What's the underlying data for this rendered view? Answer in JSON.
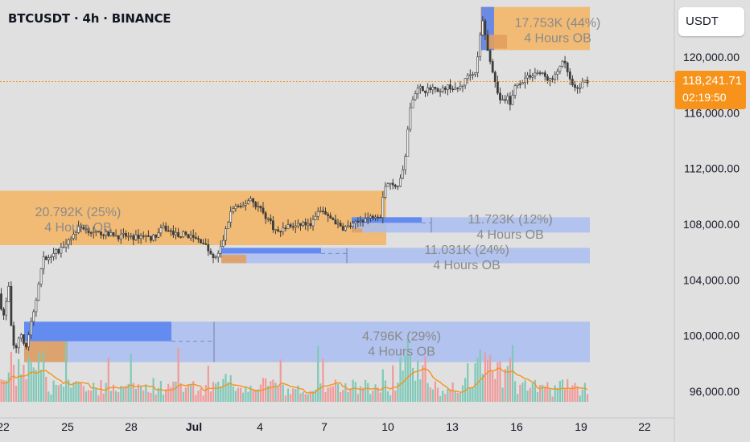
{
  "header": {
    "title": "BTCUSDT · 4h · BINANCE"
  },
  "symbol_button": {
    "label": "USDT"
  },
  "last_price": {
    "value": "118,241.71",
    "countdown": "02:19:50",
    "price": 118241.71,
    "color": "#f7931a"
  },
  "colors": {
    "up": "#4a4a4a",
    "down": "#4a4a4a",
    "volume_up": "#7fc9b8",
    "volume_down": "#f09a9a",
    "ob_bullish": "#f5b462",
    "ob_bearish": "#a8bdf0",
    "ob_accent_blue": "#5b85f0",
    "ob_accent_orange": "#e2a060",
    "ma_line": "#f7931a",
    "last_price_line": "#f7931a"
  },
  "chart_data": {
    "type": "candlestick",
    "title": "BTCUSDT · 4h · BINANCE",
    "x_tick_labels": [
      "22",
      "25",
      "28",
      "Jul",
      "4",
      "7",
      "10",
      "13",
      "16",
      "19",
      "22"
    ],
    "y_tick_labels": [
      "96,000.00",
      "100,000.00",
      "104,000.00",
      "108,000.00",
      "112,000.00",
      "116,000.00",
      "120,000.00"
    ],
    "y_ticks": [
      96000,
      100000,
      104000,
      108000,
      112000,
      116000,
      120000
    ],
    "ylim": [
      95200,
      124800
    ],
    "order_blocks": [
      {
        "label": "17.753K (44%)",
        "sublabel": "4 Hours OB",
        "bottom": 120500,
        "top": 123600,
        "type": "bullish"
      },
      {
        "label": "20.792K (25%)",
        "sublabel": "4 Hours OB",
        "bottom": 106500,
        "top": 110400,
        "type": "bullish"
      },
      {
        "label": "11.723K (12%)",
        "sublabel": "4 Hours OB",
        "bottom": 107400,
        "top": 108500,
        "type": "bearish"
      },
      {
        "label": "11.031K (24%)",
        "sublabel": "4 Hours OB",
        "bottom": 105200,
        "top": 106300,
        "type": "bearish"
      },
      {
        "label": "4.796K (29%)",
        "sublabel": "4 Hours OB",
        "bottom": 98100,
        "top": 101000,
        "type": "bearish"
      }
    ],
    "price_path": [
      [
        0,
        103000
      ],
      [
        8,
        101400
      ],
      [
        14,
        103500
      ],
      [
        18,
        99600
      ],
      [
        22,
        98900
      ],
      [
        26,
        99800
      ],
      [
        30,
        100300
      ],
      [
        34,
        98700
      ],
      [
        40,
        100500
      ],
      [
        46,
        101800
      ],
      [
        52,
        104200
      ],
      [
        58,
        105700
      ],
      [
        64,
        105500
      ],
      [
        70,
        106100
      ],
      [
        76,
        106000
      ],
      [
        82,
        106500
      ],
      [
        88,
        106900
      ],
      [
        94,
        107200
      ],
      [
        100,
        107700
      ],
      [
        106,
        107800
      ],
      [
        112,
        107600
      ],
      [
        118,
        107400
      ],
      [
        124,
        107300
      ],
      [
        130,
        107400
      ],
      [
        138,
        107200
      ],
      [
        144,
        107300
      ],
      [
        150,
        107100
      ],
      [
        158,
        107200
      ],
      [
        166,
        107000
      ],
      [
        174,
        107100
      ],
      [
        182,
        107200
      ],
      [
        190,
        107000
      ],
      [
        198,
        107200
      ],
      [
        206,
        107800
      ],
      [
        212,
        107500
      ],
      [
        218,
        107400
      ],
      [
        224,
        107200
      ],
      [
        232,
        107300
      ],
      [
        240,
        107100
      ],
      [
        248,
        106900
      ],
      [
        256,
        106700
      ],
      [
        262,
        106100
      ],
      [
        268,
        105500
      ],
      [
        274,
        105800
      ],
      [
        278,
        106400
      ],
      [
        282,
        107200
      ],
      [
        286,
        108100
      ],
      [
        290,
        108900
      ],
      [
        296,
        109300
      ],
      [
        302,
        109100
      ],
      [
        308,
        109500
      ],
      [
        314,
        109900
      ],
      [
        320,
        109400
      ],
      [
        326,
        109200
      ],
      [
        332,
        108600
      ],
      [
        338,
        108300
      ],
      [
        344,
        107600
      ],
      [
        350,
        107400
      ],
      [
        356,
        107700
      ],
      [
        362,
        107900
      ],
      [
        368,
        107800
      ],
      [
        374,
        107900
      ],
      [
        380,
        108100
      ],
      [
        386,
        107900
      ],
      [
        392,
        108200
      ],
      [
        398,
        108800
      ],
      [
        404,
        109000
      ],
      [
        410,
        108500
      ],
      [
        416,
        108400
      ],
      [
        422,
        108000
      ],
      [
        428,
        107700
      ],
      [
        434,
        107800
      ],
      [
        440,
        107900
      ],
      [
        446,
        108100
      ],
      [
        452,
        108300
      ],
      [
        458,
        108400
      ],
      [
        464,
        108500
      ],
      [
        470,
        108700
      ],
      [
        476,
        108600
      ],
      [
        480,
        110600
      ],
      [
        486,
        111000
      ],
      [
        492,
        110700
      ],
      [
        498,
        110900
      ],
      [
        504,
        111800
      ],
      [
        508,
        113500
      ],
      [
        512,
        116000
      ],
      [
        516,
        117100
      ],
      [
        520,
        117600
      ],
      [
        526,
        117800
      ],
      [
        532,
        117600
      ],
      [
        538,
        117700
      ],
      [
        544,
        117900
      ],
      [
        550,
        117500
      ],
      [
        556,
        117800
      ],
      [
        562,
        117900
      ],
      [
        568,
        117600
      ],
      [
        574,
        117800
      ],
      [
        580,
        118200
      ],
      [
        586,
        118900
      ],
      [
        592,
        118700
      ],
      [
        596,
        119500
      ],
      [
        600,
        121600
      ],
      [
        604,
        122800
      ],
      [
        608,
        120600
      ],
      [
        612,
        119900
      ],
      [
        616,
        118900
      ],
      [
        620,
        117700
      ],
      [
        624,
        117000
      ],
      [
        628,
        116800
      ],
      [
        634,
        117100
      ],
      [
        638,
        116500
      ],
      [
        642,
        117800
      ],
      [
        646,
        118000
      ],
      [
        652,
        118300
      ],
      [
        658,
        118600
      ],
      [
        664,
        118700
      ],
      [
        670,
        118900
      ],
      [
        676,
        118800
      ],
      [
        682,
        118500
      ],
      [
        688,
        118300
      ],
      [
        694,
        118700
      ],
      [
        700,
        119600
      ],
      [
        706,
        119400
      ],
      [
        712,
        118200
      ],
      [
        718,
        117600
      ],
      [
        724,
        117900
      ],
      [
        730,
        118300
      ],
      [
        734,
        118241.71
      ]
    ]
  }
}
